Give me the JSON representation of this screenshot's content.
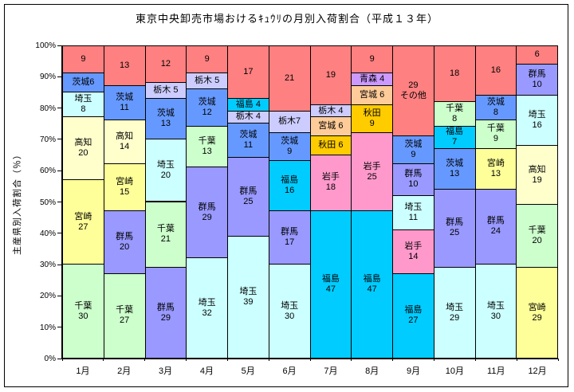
{
  "title": "東京中央卸売市場おけるｷｭｳﾘの月別入荷割合（平成１３年）",
  "y_axis": {
    "title": "主産県別入荷割合（％）",
    "tick_labels": [
      "0%",
      "10%",
      "20%",
      "30%",
      "40%",
      "50%",
      "60%",
      "70%",
      "80%",
      "90%",
      "100%"
    ]
  },
  "x_axis": {
    "labels": [
      "1月",
      "2月",
      "3月",
      "4月",
      "5月",
      "6月",
      "7月",
      "8月",
      "9月",
      "10月",
      "11月",
      "12月"
    ]
  },
  "colors": {
    "その他": "#FF8080",
    "茨城": "#6699FF",
    "栃木": "#CCCCFF",
    "埼玉": "#CCFFFF",
    "千葉": "#CCFFCC",
    "群馬": "#9999FF",
    "高知": "#FFFFCC",
    "宮崎": "#FFFF99",
    "福島": "#00CCFF",
    "岩手": "#FF99CC",
    "宮城": "#FFCC99",
    "秋田": "#FFCC00",
    "青森": "#CC99FF"
  },
  "chart_data": {
    "type": "bar",
    "subtype": "100-percent-stacked-column",
    "title": "東京中央卸売市場おけるｷｭｳﾘの月別入荷割合（平成１３年）",
    "xlabel": "",
    "ylabel": "主産県別入荷割合（％）",
    "ylim": [
      0,
      100
    ],
    "y_tick_step": 10,
    "grid": false,
    "legend": "none",
    "categories": [
      "1月",
      "2月",
      "3月",
      "4月",
      "5月",
      "6月",
      "7月",
      "8月",
      "9月",
      "10月",
      "11月",
      "12月"
    ],
    "months": [
      {
        "month": "1月",
        "segments": [
          {
            "name": "その他",
            "value": 9,
            "label_lines": [
              "9"
            ]
          },
          {
            "name": "茨城",
            "value": 6,
            "label_lines": [
              "茨城6"
            ]
          },
          {
            "name": "埼玉",
            "value": 8,
            "label_lines": [
              "埼玉",
              "8"
            ]
          },
          {
            "name": "高知",
            "value": 20,
            "label_lines": [
              "高知",
              "20"
            ]
          },
          {
            "name": "宮崎",
            "value": 27,
            "label_lines": [
              "宮崎",
              "27"
            ]
          },
          {
            "name": "千葉",
            "value": 30,
            "label_lines": [
              "千葉",
              "30"
            ]
          }
        ]
      },
      {
        "month": "2月",
        "segments": [
          {
            "name": "その他",
            "value": 13,
            "label_lines": [
              "13"
            ]
          },
          {
            "name": "茨城",
            "value": 11,
            "label_lines": [
              "茨城",
              "11"
            ]
          },
          {
            "name": "高知",
            "value": 14,
            "label_lines": [
              "高知",
              "14"
            ]
          },
          {
            "name": "宮崎",
            "value": 15,
            "label_lines": [
              "宮崎",
              "15"
            ]
          },
          {
            "name": "群馬",
            "value": 20,
            "label_lines": [
              "群馬",
              "20"
            ]
          },
          {
            "name": "千葉",
            "value": 27,
            "label_lines": [
              "千葉",
              "27"
            ]
          }
        ]
      },
      {
        "month": "3月",
        "segments": [
          {
            "name": "その他",
            "value": 12,
            "label_lines": [
              "12"
            ]
          },
          {
            "name": "栃木",
            "value": 5,
            "label_lines": [
              "栃木 5"
            ]
          },
          {
            "name": "茨城",
            "value": 13,
            "label_lines": [
              "茨城",
              "13"
            ]
          },
          {
            "name": "埼玉",
            "value": 20,
            "label_lines": [
              "埼玉",
              "20"
            ]
          },
          {
            "name": "千葉",
            "value": 21,
            "label_lines": [
              "千葉",
              "21"
            ]
          },
          {
            "name": "群馬",
            "value": 29,
            "label_lines": [
              "群馬",
              "29"
            ]
          }
        ]
      },
      {
        "month": "4月",
        "segments": [
          {
            "name": "その他",
            "value": 9,
            "label_lines": [
              "9"
            ]
          },
          {
            "name": "栃木",
            "value": 5,
            "label_lines": [
              "栃木 5"
            ]
          },
          {
            "name": "茨城",
            "value": 12,
            "label_lines": [
              "茨城",
              "12"
            ]
          },
          {
            "name": "千葉",
            "value": 13,
            "label_lines": [
              "千葉",
              "13"
            ]
          },
          {
            "name": "群馬",
            "value": 29,
            "label_lines": [
              "群馬",
              "29"
            ]
          },
          {
            "name": "埼玉",
            "value": 32,
            "label_lines": [
              "埼玉",
              "32"
            ]
          }
        ]
      },
      {
        "month": "5月",
        "segments": [
          {
            "name": "その他",
            "value": 17,
            "label_lines": [
              "17"
            ]
          },
          {
            "name": "福島",
            "value": 4,
            "label_lines": [
              "福島 4"
            ]
          },
          {
            "name": "栃木",
            "value": 4,
            "label_lines": [
              "栃木 4"
            ]
          },
          {
            "name": "茨城",
            "value": 11,
            "label_lines": [
              "茨城",
              "11"
            ]
          },
          {
            "name": "群馬",
            "value": 25,
            "label_lines": [
              "群馬",
              "25"
            ]
          },
          {
            "name": "埼玉",
            "value": 39,
            "label_lines": [
              "埼玉",
              "39"
            ]
          }
        ]
      },
      {
        "month": "6月",
        "segments": [
          {
            "name": "その他",
            "value": 21,
            "label_lines": [
              "21"
            ]
          },
          {
            "name": "栃木",
            "value": 7,
            "label_lines": [
              "栃木7"
            ]
          },
          {
            "name": "茨城",
            "value": 9,
            "label_lines": [
              "茨城",
              "9"
            ]
          },
          {
            "name": "福島",
            "value": 16,
            "label_lines": [
              "福島",
              "16"
            ]
          },
          {
            "name": "群馬",
            "value": 17,
            "label_lines": [
              "群馬",
              "17"
            ]
          },
          {
            "name": "埼玉",
            "value": 30,
            "label_lines": [
              "埼玉",
              "30"
            ]
          }
        ]
      },
      {
        "month": "7月",
        "segments": [
          {
            "name": "その他",
            "value": 19,
            "label_lines": [
              "19"
            ]
          },
          {
            "name": "栃木",
            "value": 4,
            "label_lines": [
              "栃木 4"
            ]
          },
          {
            "name": "宮城",
            "value": 6,
            "label_lines": [
              "宮城 6"
            ]
          },
          {
            "name": "秋田",
            "value": 6,
            "label_lines": [
              "秋田 6"
            ]
          },
          {
            "name": "岩手",
            "value": 18,
            "label_lines": [
              "岩手",
              "18"
            ]
          },
          {
            "name": "福島",
            "value": 47,
            "label_lines": [
              "福島",
              "47"
            ]
          }
        ]
      },
      {
        "month": "8月",
        "segments": [
          {
            "name": "その他",
            "value": 9,
            "label_lines": [
              "9"
            ]
          },
          {
            "name": "青森",
            "value": 4,
            "label_lines": [
              "青森 4"
            ]
          },
          {
            "name": "宮城",
            "value": 6,
            "label_lines": [
              "宮城 6"
            ]
          },
          {
            "name": "秋田",
            "value": 9,
            "label_lines": [
              "秋田",
              "9"
            ]
          },
          {
            "name": "岩手",
            "value": 25,
            "label_lines": [
              "岩手",
              "25"
            ]
          },
          {
            "name": "福島",
            "value": 47,
            "label_lines": [
              "福島",
              "47"
            ]
          }
        ]
      },
      {
        "month": "9月",
        "segments": [
          {
            "name": "その他",
            "value": 29,
            "label_lines": [
              "29",
              "その他"
            ]
          },
          {
            "name": "茨城",
            "value": 9,
            "label_lines": [
              "茨城",
              "9"
            ]
          },
          {
            "name": "群馬",
            "value": 10,
            "label_lines": [
              "群馬",
              "10"
            ]
          },
          {
            "name": "埼玉",
            "value": 11,
            "label_lines": [
              "埼玉",
              "11"
            ]
          },
          {
            "name": "岩手",
            "value": 14,
            "label_lines": [
              "岩手",
              "14"
            ]
          },
          {
            "name": "福島",
            "value": 27,
            "label_lines": [
              "福島",
              "27"
            ]
          }
        ]
      },
      {
        "month": "10月",
        "segments": [
          {
            "name": "その他",
            "value": 18,
            "label_lines": [
              "18"
            ]
          },
          {
            "name": "千葉",
            "value": 8,
            "label_lines": [
              "千葉",
              "8"
            ]
          },
          {
            "name": "福島",
            "value": 7,
            "label_lines": [
              "福島",
              "7"
            ]
          },
          {
            "name": "茨城",
            "value": 13,
            "label_lines": [
              "茨城",
              "13"
            ]
          },
          {
            "name": "群馬",
            "value": 25,
            "label_lines": [
              "群馬",
              "25"
            ]
          },
          {
            "name": "埼玉",
            "value": 29,
            "label_lines": [
              "埼玉",
              "29"
            ]
          }
        ]
      },
      {
        "month": "11月",
        "segments": [
          {
            "name": "その他",
            "value": 16,
            "label_lines": [
              "16"
            ]
          },
          {
            "name": "茨城",
            "value": 8,
            "label_lines": [
              "茨城",
              "8"
            ]
          },
          {
            "name": "千葉",
            "value": 9,
            "label_lines": [
              "千葉",
              "9"
            ]
          },
          {
            "name": "宮崎",
            "value": 13,
            "label_lines": [
              "宮崎",
              "13"
            ]
          },
          {
            "name": "群馬",
            "value": 24,
            "label_lines": [
              "群馬",
              "24"
            ]
          },
          {
            "name": "埼玉",
            "value": 30,
            "label_lines": [
              "埼玉",
              "30"
            ]
          }
        ]
      },
      {
        "month": "12月",
        "segments": [
          {
            "name": "その他",
            "value": 6,
            "label_lines": [
              "6"
            ]
          },
          {
            "name": "群馬",
            "value": 10,
            "label_lines": [
              "群馬",
              "10"
            ]
          },
          {
            "name": "埼玉",
            "value": 16,
            "label_lines": [
              "埼玉",
              "16"
            ]
          },
          {
            "name": "高知",
            "value": 19,
            "label_lines": [
              "高知",
              "19"
            ]
          },
          {
            "name": "千葉",
            "value": 20,
            "label_lines": [
              "千葉",
              "20"
            ]
          },
          {
            "name": "宮崎",
            "value": 29,
            "label_lines": [
              "宮崎",
              "29"
            ]
          }
        ]
      }
    ]
  }
}
